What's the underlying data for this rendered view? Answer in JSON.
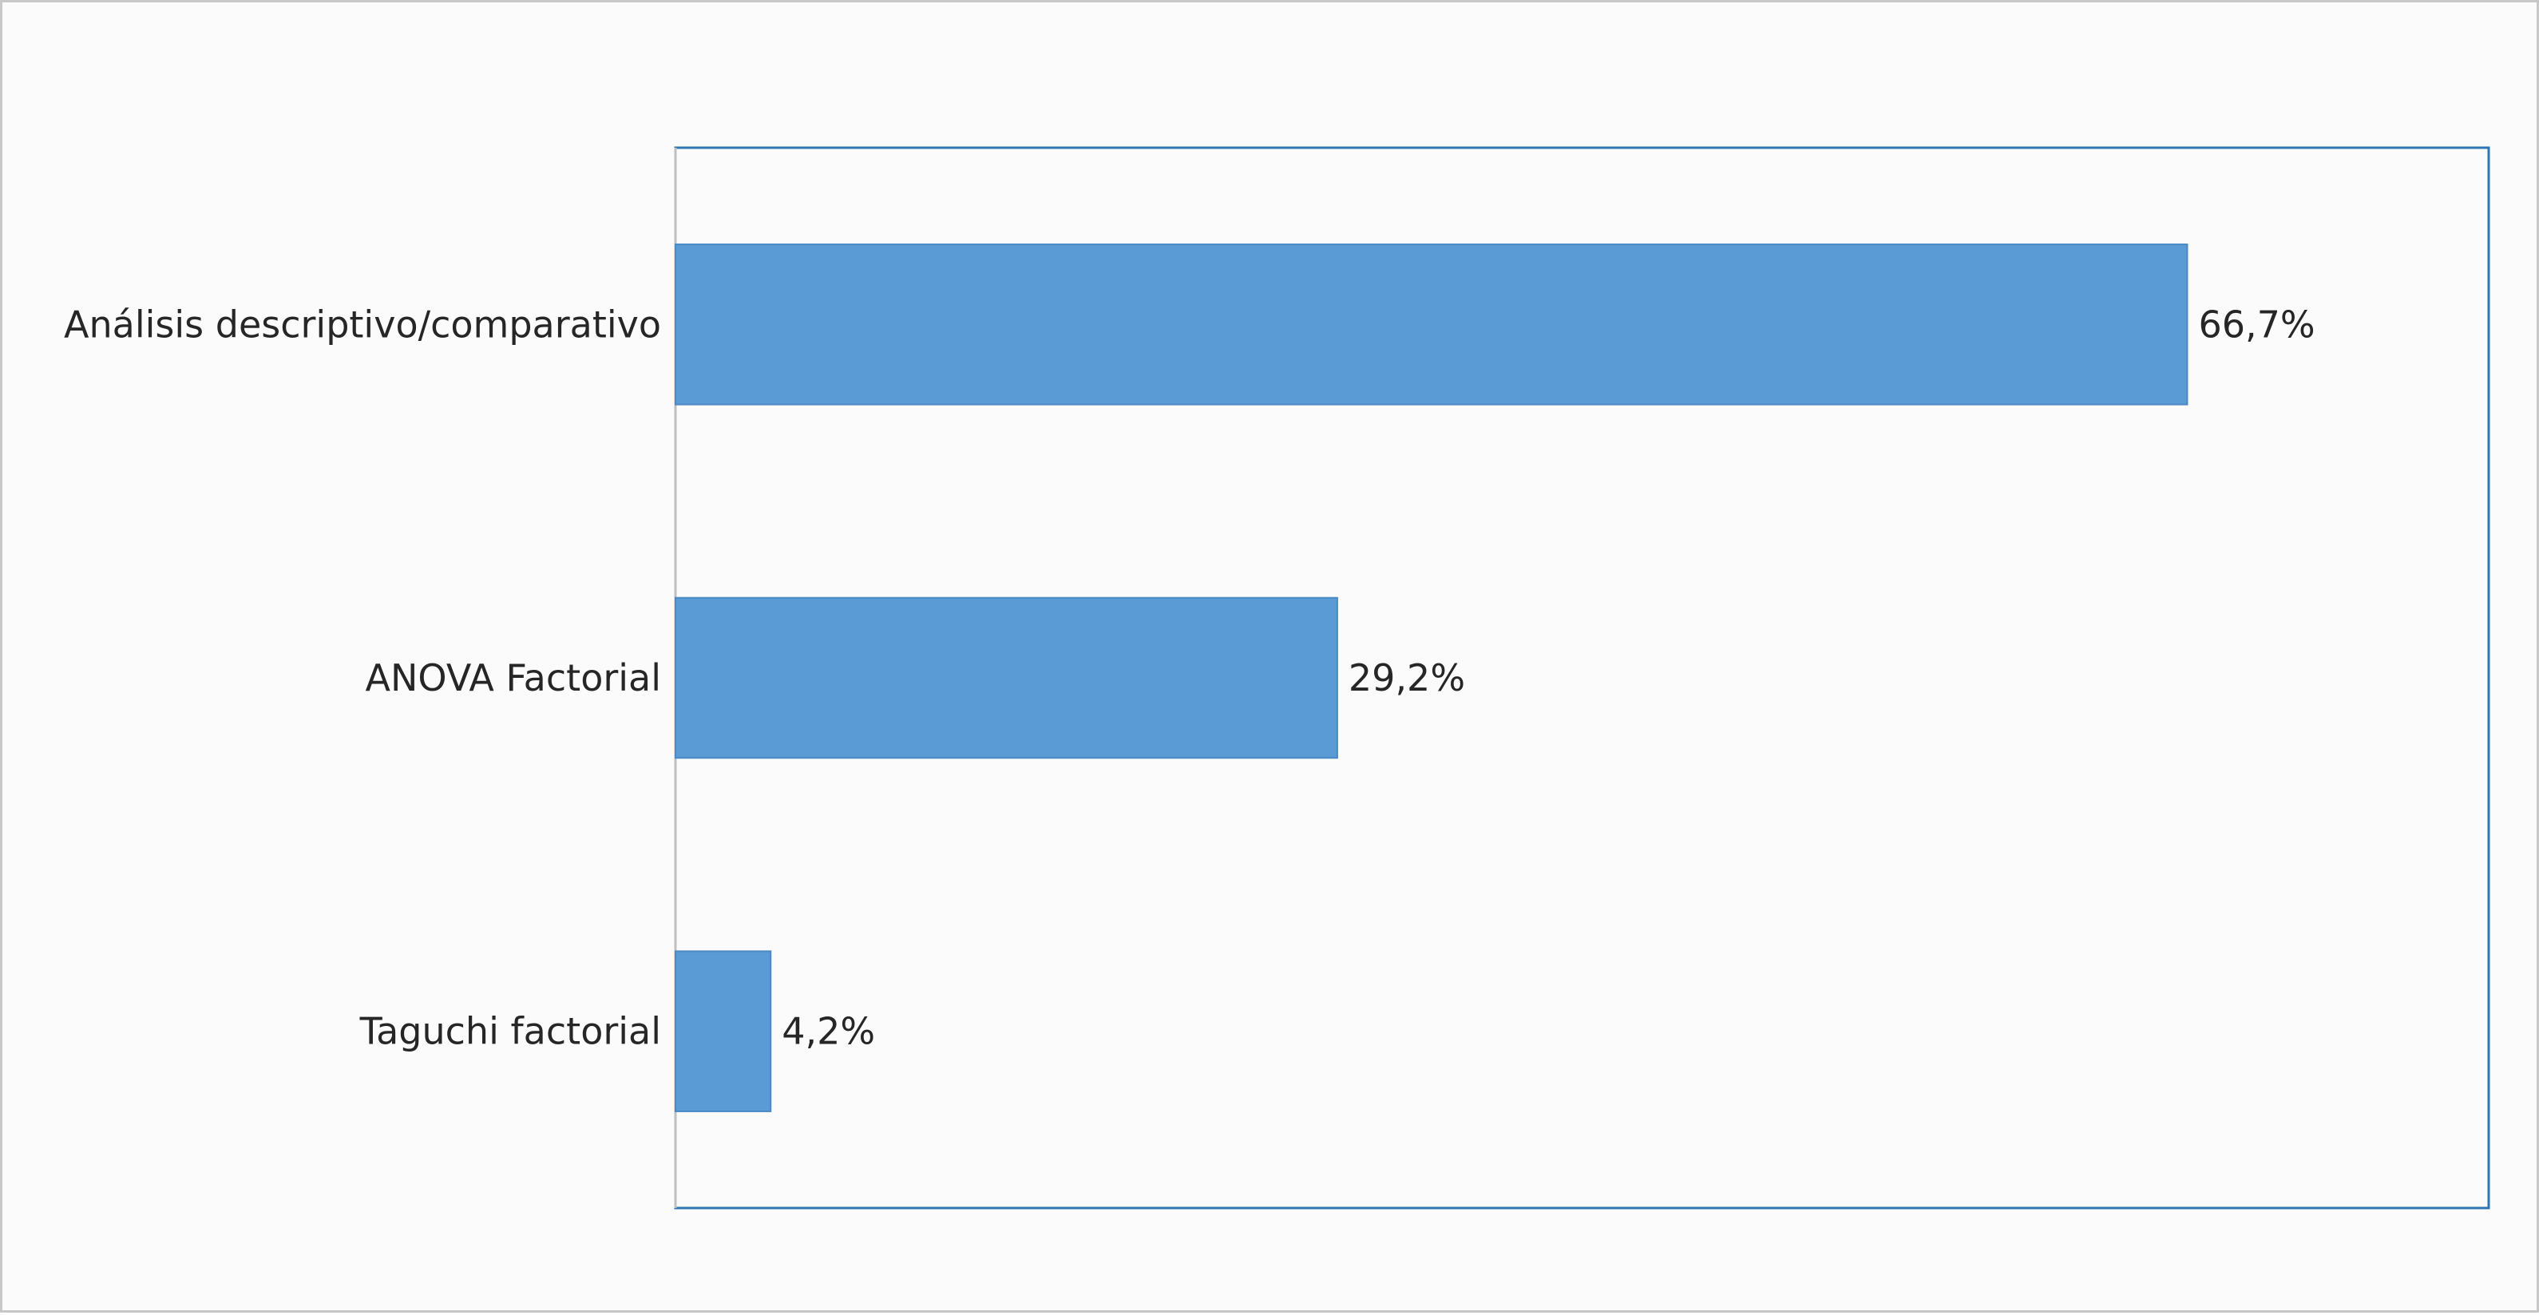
{
  "chart_data": {
    "type": "bar",
    "orientation": "horizontal",
    "categories": [
      "Análisis descriptivo/comparativo",
      "ANOVA Factorial",
      "Taguchi factorial"
    ],
    "values": [
      66.7,
      29.2,
      4.2
    ],
    "value_labels": [
      "66,7%",
      "29,2%",
      "4,2%"
    ],
    "xlim": [
      0,
      80
    ],
    "grid": false,
    "legend": "none",
    "colors": {
      "bar": "#5b9bd5",
      "bar_edge": "#4a89c4",
      "plot_border": "#2e75b6",
      "axis_line": "#bfbfbf",
      "text": "#262626",
      "background": "#fbfbfb"
    }
  }
}
